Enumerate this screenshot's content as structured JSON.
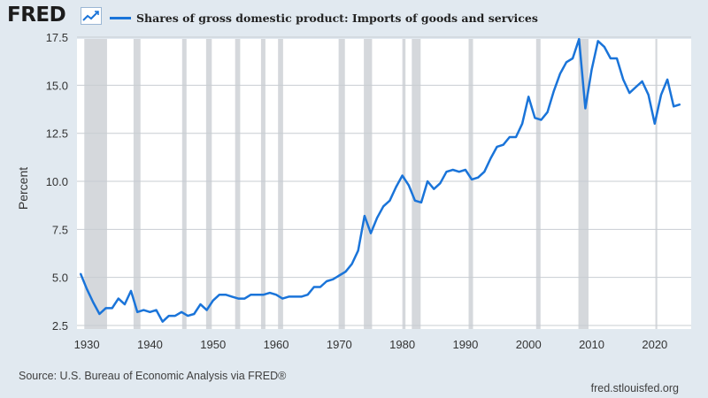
{
  "header": {
    "logo_text": "FRED",
    "logo_icon": "trend-line-icon",
    "legend_label": "Shares of gross domestic product: Imports of goods and services"
  },
  "footer": {
    "source": "Source: U.S. Bureau of Economic Analysis via FRED®",
    "site": "fred.stlouisfed.org"
  },
  "colors": {
    "series": "#1a74d9",
    "plot_bg": "#ffffff",
    "page_bg": "#e1e9f0",
    "recession": "#d5d8dc",
    "grid": "#c8cdd2"
  },
  "chart_data": {
    "type": "line",
    "ylabel": "Percent",
    "xlabel": "",
    "ylim": [
      2.5,
      17.5
    ],
    "xlim": [
      1929,
      2024
    ],
    "yticks": [
      2.5,
      5.0,
      7.5,
      10.0,
      12.5,
      15.0,
      17.5
    ],
    "xticks": [
      1930,
      1940,
      1950,
      1960,
      1970,
      1980,
      1990,
      2000,
      2010,
      2020
    ],
    "grid": "horizontal",
    "legend": "top-left",
    "recessions": [
      [
        1929.6,
        1933.2
      ],
      [
        1937.4,
        1938.5
      ],
      [
        1945.1,
        1945.8
      ],
      [
        1948.9,
        1949.8
      ],
      [
        1953.5,
        1954.3
      ],
      [
        1957.6,
        1958.3
      ],
      [
        1960.3,
        1961.1
      ],
      [
        1969.9,
        1970.9
      ],
      [
        1973.9,
        1975.2
      ],
      [
        1980.0,
        1980.5
      ],
      [
        1981.5,
        1982.9
      ],
      [
        1990.5,
        1991.2
      ],
      [
        2001.2,
        2001.9
      ],
      [
        2007.9,
        2009.5
      ],
      [
        2020.1,
        2020.4
      ]
    ],
    "series": [
      {
        "name": "Shares of gross domestic product: Imports of goods and services",
        "x": [
          1929,
          1930,
          1931,
          1932,
          1933,
          1934,
          1935,
          1936,
          1937,
          1938,
          1939,
          1940,
          1941,
          1942,
          1943,
          1944,
          1945,
          1946,
          1947,
          1948,
          1949,
          1950,
          1951,
          1952,
          1953,
          1954,
          1955,
          1956,
          1957,
          1958,
          1959,
          1960,
          1961,
          1962,
          1963,
          1964,
          1965,
          1966,
          1967,
          1968,
          1969,
          1970,
          1971,
          1972,
          1973,
          1974,
          1975,
          1976,
          1977,
          1978,
          1979,
          1980,
          1981,
          1982,
          1983,
          1984,
          1985,
          1986,
          1987,
          1988,
          1989,
          1990,
          1991,
          1992,
          1993,
          1994,
          1995,
          1996,
          1997,
          1998,
          1999,
          2000,
          2001,
          2002,
          2003,
          2004,
          2005,
          2006,
          2007,
          2008,
          2009,
          2010,
          2011,
          2012,
          2013,
          2014,
          2015,
          2016,
          2017,
          2018,
          2019,
          2020,
          2021,
          2022,
          2023,
          2024
        ],
        "values": [
          5.2,
          4.4,
          3.7,
          3.1,
          3.4,
          3.4,
          3.9,
          3.6,
          4.3,
          3.2,
          3.3,
          3.2,
          3.3,
          2.7,
          3.0,
          3.0,
          3.2,
          3.0,
          3.1,
          3.6,
          3.3,
          3.8,
          4.1,
          4.1,
          4.0,
          3.9,
          3.9,
          4.1,
          4.1,
          4.1,
          4.2,
          4.1,
          3.9,
          4.0,
          4.0,
          4.0,
          4.1,
          4.5,
          4.5,
          4.8,
          4.9,
          5.1,
          5.3,
          5.7,
          6.4,
          8.2,
          7.3,
          8.1,
          8.7,
          9.0,
          9.7,
          10.3,
          9.8,
          9.0,
          8.9,
          10.0,
          9.6,
          9.9,
          10.5,
          10.6,
          10.5,
          10.6,
          10.1,
          10.2,
          10.5,
          11.2,
          11.8,
          11.9,
          12.3,
          12.3,
          13.0,
          14.4,
          13.3,
          13.2,
          13.6,
          14.7,
          15.6,
          16.2,
          16.4,
          17.4,
          13.8,
          15.8,
          17.3,
          17.0,
          16.4,
          16.4,
          15.3,
          14.6,
          14.9,
          15.2,
          14.5,
          13.0,
          14.5,
          15.3,
          13.9,
          14.0
        ]
      }
    ]
  }
}
